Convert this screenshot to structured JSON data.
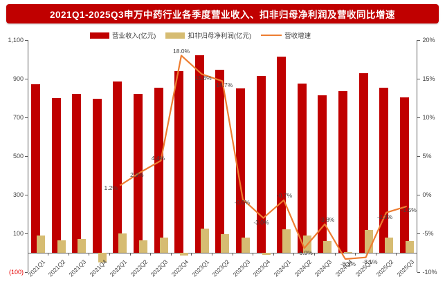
{
  "title_banner": {
    "text": "2021Q1-2025Q3申万中药行业各季度营业收入、扣非归母净利润及营收同比增速"
  },
  "colors": {
    "banner_bg": "#C00000",
    "revenue_bar": "#C00000",
    "profit_bar": "#D6BC72",
    "growth_line": "#ED7D31",
    "axis": "#595959",
    "axis_text": "#404040",
    "negative_tick_text": "#E60000"
  },
  "chart_data": {
    "type": "combo",
    "title": "2021Q1-2025Q3申万中药行业各季度营业收入、扣非归母净利润及营收同比增速",
    "categories": [
      "2021Q1",
      "2021Q2",
      "2021Q3",
      "2021Q4",
      "2022Q1",
      "2022Q2",
      "2022Q3",
      "2022Q4",
      "2023Q1",
      "2023Q2",
      "2023Q3",
      "2023Q4",
      "2024Q1",
      "2024Q2",
      "2024Q3",
      "2024Q4",
      "2025Q1",
      "2025Q2",
      "2025Q3"
    ],
    "series": [
      {
        "name": "营业收入(亿元)",
        "type": "bar",
        "axis": "left",
        "color": "#C00000",
        "values": [
          870,
          800,
          820,
          795,
          885,
          820,
          855,
          940,
          1020,
          945,
          850,
          915,
          1015,
          875,
          815,
          835,
          930,
          855,
          805
        ]
      },
      {
        "name": "扣非归母净利润(亿元)",
        "type": "bar",
        "axis": "left",
        "color": "#D6BC72",
        "values": [
          90,
          65,
          70,
          -50,
          100,
          65,
          80,
          -15,
          125,
          95,
          78,
          -10,
          120,
          90,
          60,
          5,
          118,
          80,
          60
        ]
      },
      {
        "name": "营收增速",
        "type": "line",
        "axis": "right",
        "color": "#ED7D31",
        "points": [
          {
            "category": "2022Q1",
            "value": 1.2,
            "label": "1.2%",
            "dx": -13,
            "dy": 3
          },
          {
            "category": "2022Q2",
            "value": 2.9,
            "label": "2.9%",
            "dx": -5,
            "dy": 3
          },
          {
            "category": "2022Q3",
            "value": 4.4,
            "label": "4.4%",
            "dx": -4,
            "dy": -4
          },
          {
            "category": "2022Q4",
            "value": 18.0,
            "label": "18.0%",
            "dx": 0,
            "dy": -6
          },
          {
            "category": "2023Q1",
            "value": 15.6,
            "label": "15.6%",
            "dx": 2,
            "dy": 6
          },
          {
            "category": "2023Q2",
            "value": 14.7,
            "label": "14.7%",
            "dx": 3,
            "dy": 6
          },
          {
            "category": "2023Q3",
            "value": -0.6,
            "label": "-0.6%",
            "dx": -1,
            "dy": 4
          },
          {
            "category": "2023Q4",
            "value": -3.0,
            "label": "-3.0%",
            "dx": -3,
            "dy": 6
          },
          {
            "category": "2024Q1",
            "value": -0.7,
            "label": "-0.7%",
            "dx": 1,
            "dy": -7
          },
          {
            "category": "2024Q2",
            "value": -6.9,
            "label": "-6.9%",
            "dx": 1,
            "dy": 7
          },
          {
            "category": "2024Q3",
            "value": -3.8,
            "label": "-3.8%",
            "dx": 3,
            "dy": -7
          },
          {
            "category": "2024Q4",
            "value": -8.3,
            "label": "-8.3%",
            "dx": 4,
            "dy": 7
          },
          {
            "category": "2025Q1",
            "value": -8.1,
            "label": "-8.1%",
            "dx": 6,
            "dy": 6
          },
          {
            "category": "2025Q2",
            "value": -2.3,
            "label": "-2.3%",
            "dx": -2,
            "dy": 6
          },
          {
            "category": "2025Q3",
            "value": -1.5,
            "label": "-1.5%",
            "dx": 3,
            "dy": 5
          }
        ]
      }
    ],
    "left_axis": {
      "min": -100,
      "max": 1100,
      "ticks": [
        {
          "label": "1,100",
          "value": 1100,
          "negative": false
        },
        {
          "label": "900",
          "value": 900,
          "negative": false
        },
        {
          "label": "700",
          "value": 700,
          "negative": false
        },
        {
          "label": "500",
          "value": 500,
          "negative": false
        },
        {
          "label": "300",
          "value": 300,
          "negative": false
        },
        {
          "label": "100",
          "value": 100,
          "negative": false
        },
        {
          "label": "(100)",
          "value": -100,
          "negative": true
        }
      ]
    },
    "right_axis": {
      "min": -10,
      "max": 20,
      "ticks": [
        {
          "label": "20%",
          "value": 20
        },
        {
          "label": "15%",
          "value": 15
        },
        {
          "label": "10%",
          "value": 10
        },
        {
          "label": "5%",
          "value": 5
        },
        {
          "label": "0%",
          "value": 0
        },
        {
          "label": "-5%",
          "value": -5
        },
        {
          "label": "-10%",
          "value": -10
        }
      ]
    },
    "grid": false,
    "legend_position": "top"
  }
}
